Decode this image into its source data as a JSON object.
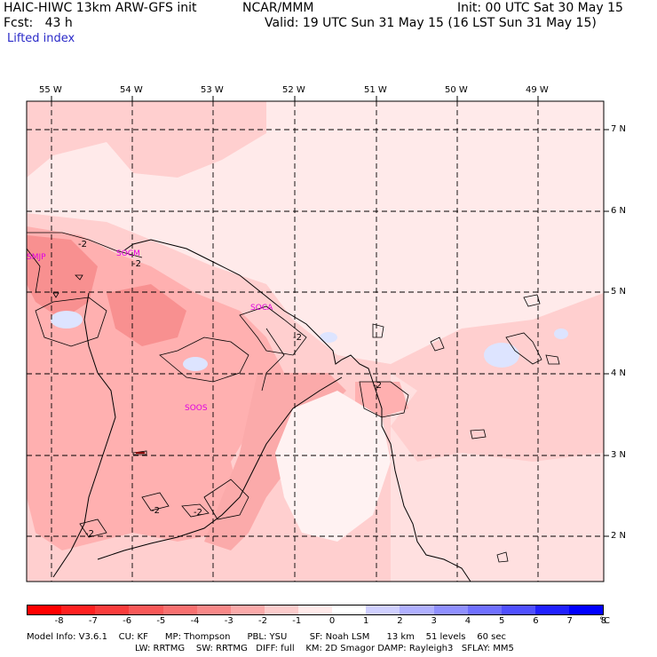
{
  "header": {
    "title_left": "HAIC-HIWC 13km ARW-GFS init",
    "title_center": "NCAR/MMM",
    "init_text": "Init: 00 UTC Sat 30 May 15",
    "fcst_text": "Fcst:   43 h",
    "valid_text": "Valid: 19 UTC Sun 31 May 15 (16 LST Sun 31 May 15)",
    "field_name": "Lifted index"
  },
  "map": {
    "longitude_labels": [
      "55 W",
      "54 W",
      "53 W",
      "52 W",
      "51 W",
      "50 W",
      "49 W"
    ],
    "latitude_labels": [
      "7 N",
      "6 N",
      "5 N",
      "4 N",
      "3 N",
      "2 N"
    ],
    "stations": [
      "SMJP",
      "SOCM",
      "SOCA",
      "SOOS"
    ],
    "contour_labels": [
      "-2",
      "-2",
      "-2",
      "-2",
      "-2",
      "-2",
      "-2"
    ],
    "colors": {
      "pale_pink": "#ffeaea",
      "light_pink": "#ffcfcf",
      "pink": "#ffb0b0",
      "salmon": "#f89090",
      "red": "#f07070",
      "light_blue": "#dde4ff",
      "border": "#000000"
    }
  },
  "colorbar": {
    "labels": [
      "-8",
      "-7",
      "-6",
      "-5",
      "-4",
      "-3",
      "-2",
      "-1",
      "0",
      "1",
      "2",
      "3",
      "4",
      "5",
      "6",
      "7",
      "8"
    ],
    "unit": "°C",
    "colors": [
      "#ff0000",
      "#ff2020",
      "#fa3c3c",
      "#f85858",
      "#f87070",
      "#f88888",
      "#fbaaaa",
      "#fccccc",
      "#ffeaea",
      "#ffffff",
      "#d0d0ff",
      "#b0b0ff",
      "#9090ff",
      "#7070ff",
      "#5050ff",
      "#2020ff",
      "#0000ff"
    ]
  },
  "model_info": {
    "row1": "Model Info: V3.6.1    CU: KF      MP: Thompson      PBL: YSU        SF: Noah LSM      13 km    51 levels    60 sec",
    "row2": "LW: RRTMG    SW: RRTMG   DIFF: full    KM: 2D Smagor DAMP: Rayleigh3   SFLAY: MM5"
  }
}
